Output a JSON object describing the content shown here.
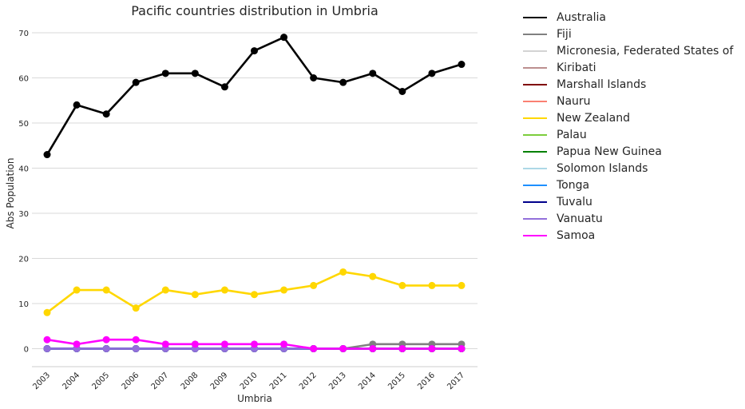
{
  "chart_data": {
    "type": "line",
    "title": "Pacific countries distribution in Umbria",
    "xlabel": "Umbria",
    "ylabel": "Abs Population",
    "categories": [
      "2003",
      "2004",
      "2005",
      "2006",
      "2007",
      "2008",
      "2009",
      "2010",
      "2011",
      "2012",
      "2013",
      "2014",
      "2015",
      "2016",
      "2017"
    ],
    "ylim": [
      -4,
      73
    ],
    "yticks": [
      0,
      10,
      20,
      30,
      40,
      50,
      60,
      70
    ],
    "grid": "horizontal",
    "legend_position": "outside-right",
    "series": [
      {
        "name": "Australia",
        "color": "#000000",
        "values": [
          43,
          54,
          52,
          59,
          61,
          61,
          58,
          66,
          69,
          60,
          59,
          61,
          57,
          61,
          63
        ]
      },
      {
        "name": "Fiji",
        "color": "#808080",
        "values": [
          0,
          0,
          0,
          0,
          0,
          0,
          0,
          0,
          0,
          0,
          0,
          1,
          1,
          1,
          1
        ]
      },
      {
        "name": "Micronesia, Federated States of",
        "color": "#d3d3d3",
        "values": [
          0,
          0,
          0,
          0,
          0,
          0,
          0,
          0,
          0,
          0,
          0,
          0,
          0,
          0,
          0
        ]
      },
      {
        "name": "Kiribati",
        "color": "#bc8f8f",
        "values": [
          0,
          0,
          0,
          0,
          0,
          0,
          0,
          0,
          0,
          0,
          0,
          0,
          0,
          0,
          0
        ]
      },
      {
        "name": "Marshall Islands",
        "color": "#800000",
        "values": [
          0,
          0,
          0,
          0,
          0,
          0,
          0,
          0,
          0,
          0,
          0,
          0,
          0,
          0,
          0
        ]
      },
      {
        "name": "Nauru",
        "color": "#fa8072",
        "values": [
          0,
          0,
          0,
          0,
          0,
          0,
          0,
          0,
          0,
          0,
          0,
          0,
          0,
          0,
          0
        ]
      },
      {
        "name": "New Zealand",
        "color": "#ffd700",
        "values": [
          8,
          13,
          13,
          9,
          13,
          12,
          13,
          12,
          13,
          14,
          17,
          16,
          14,
          14,
          14
        ]
      },
      {
        "name": "Palau",
        "color": "#7ccd3c",
        "values": [
          0,
          0,
          0,
          0,
          0,
          0,
          0,
          0,
          0,
          0,
          0,
          0,
          0,
          0,
          0
        ]
      },
      {
        "name": "Papua New Guinea",
        "color": "#008000",
        "values": [
          0,
          0,
          0,
          0,
          0,
          0,
          0,
          0,
          0,
          0,
          0,
          0,
          0,
          0,
          0
        ]
      },
      {
        "name": "Solomon Islands",
        "color": "#add8e6",
        "values": [
          0,
          0,
          0,
          0,
          0,
          0,
          0,
          0,
          0,
          0,
          0,
          0,
          0,
          0,
          0
        ]
      },
      {
        "name": "Tonga",
        "color": "#1e90ff",
        "values": [
          0,
          0,
          0,
          0,
          0,
          0,
          0,
          0,
          0,
          0,
          0,
          0,
          0,
          0,
          0
        ]
      },
      {
        "name": "Tuvalu",
        "color": "#00008b",
        "values": [
          0,
          0,
          0,
          0,
          0,
          0,
          0,
          0,
          0,
          0,
          0,
          0,
          0,
          0,
          0
        ]
      },
      {
        "name": "Vanuatu",
        "color": "#9370db",
        "values": [
          0,
          0,
          0,
          0,
          0,
          0,
          0,
          0,
          0,
          0,
          0,
          0,
          0,
          0,
          0
        ]
      },
      {
        "name": "Samoa",
        "color": "#ff00ff",
        "values": [
          2,
          1,
          2,
          2,
          1,
          1,
          1,
          1,
          1,
          0,
          0,
          0,
          0,
          0,
          0
        ]
      }
    ]
  }
}
